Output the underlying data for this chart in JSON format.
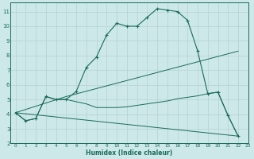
{
  "xlabel": "Humidex (Indice chaleur)",
  "bg_color": "#cce8e8",
  "grid_color": "#b8d4d4",
  "line_color": "#1a6b5a",
  "xlim": [
    -0.5,
    23
  ],
  "ylim": [
    2.0,
    11.6
  ],
  "yticks": [
    2,
    3,
    4,
    5,
    6,
    7,
    8,
    9,
    10,
    11
  ],
  "xticks": [
    0,
    1,
    2,
    3,
    4,
    5,
    6,
    7,
    8,
    9,
    10,
    11,
    12,
    13,
    14,
    15,
    16,
    17,
    18,
    19,
    20,
    21,
    22,
    23
  ],
  "line1_x": [
    0,
    1,
    2,
    3,
    4,
    5,
    6,
    7,
    8,
    9,
    10,
    11,
    12,
    13,
    14,
    15,
    16,
    17,
    18,
    19,
    20,
    21,
    22
  ],
  "line1_y": [
    4.1,
    3.55,
    3.7,
    5.2,
    5.0,
    5.0,
    5.55,
    7.2,
    7.9,
    9.4,
    10.2,
    10.0,
    10.0,
    10.6,
    11.2,
    11.1,
    11.0,
    10.4,
    8.3,
    5.4,
    5.5,
    3.9,
    2.5
  ],
  "line2_x": [
    0,
    1,
    2,
    3,
    4,
    5,
    6,
    7,
    8,
    9,
    10,
    11,
    12,
    13,
    14,
    15,
    16,
    17,
    18,
    19,
    20,
    21,
    22
  ],
  "line2_y": [
    4.1,
    3.55,
    3.7,
    5.2,
    5.0,
    5.0,
    4.85,
    4.7,
    4.45,
    4.45,
    4.45,
    4.5,
    4.6,
    4.7,
    4.8,
    4.9,
    5.05,
    5.15,
    5.25,
    5.4,
    5.5,
    3.9,
    2.5
  ],
  "line3_x": [
    0,
    5,
    22
  ],
  "line3_y": [
    4.1,
    5.2,
    8.3
  ],
  "line4_x": [
    0,
    22
  ],
  "line4_y": [
    4.1,
    2.5
  ]
}
